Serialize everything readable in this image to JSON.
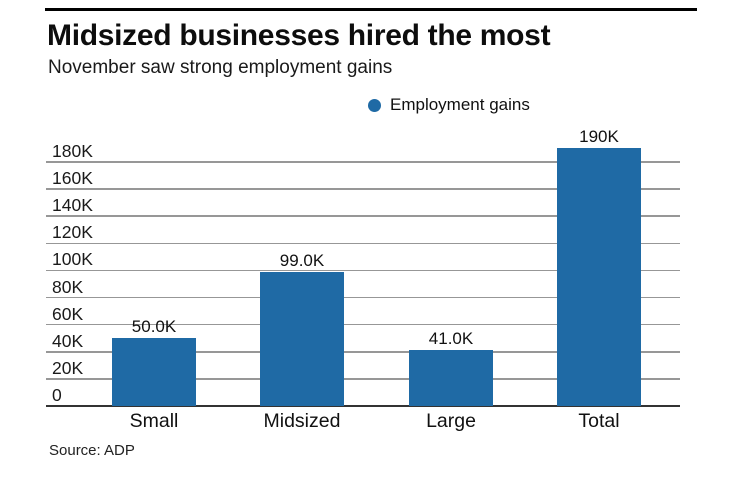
{
  "header": {
    "title": "Midsized businesses hired the most",
    "subtitle": "November saw strong employment gains"
  },
  "legend": {
    "items": [
      {
        "label": "Employment gains",
        "marker": "circle-icon",
        "color": "#1f6aa5"
      }
    ]
  },
  "footer": {
    "source": "Source: ADP"
  },
  "colors": {
    "bar": "#1f6aa5",
    "gridline": "#979797",
    "axis": "#333333",
    "text": "#111111",
    "top_rule": "#000000",
    "background": "#ffffff"
  },
  "chart_data": {
    "type": "bar",
    "title": "Midsized businesses hired the most",
    "subtitle": "November saw strong employment gains",
    "source": "Source: ADP",
    "legend_entries": [
      "Employment gains"
    ],
    "legend_position": "top-center",
    "categories": [
      "Small",
      "Midsized",
      "Large",
      "Total"
    ],
    "series": [
      {
        "name": "Employment gains",
        "values": [
          50000,
          99000,
          41000,
          190000
        ],
        "value_labels": [
          "50.0K",
          "99.0K",
          "41.0K",
          "190K"
        ],
        "color": "#1f6aa5"
      }
    ],
    "xlabel": "",
    "ylabel": "",
    "ylim": [
      0,
      190000
    ],
    "yticks": [
      0,
      20000,
      40000,
      60000,
      80000,
      100000,
      120000,
      140000,
      160000,
      180000
    ],
    "ytick_labels": [
      "0",
      "20K",
      "40K",
      "60K",
      "80K",
      "100K",
      "120K",
      "140K",
      "160K",
      "180K"
    ],
    "grid": true
  }
}
